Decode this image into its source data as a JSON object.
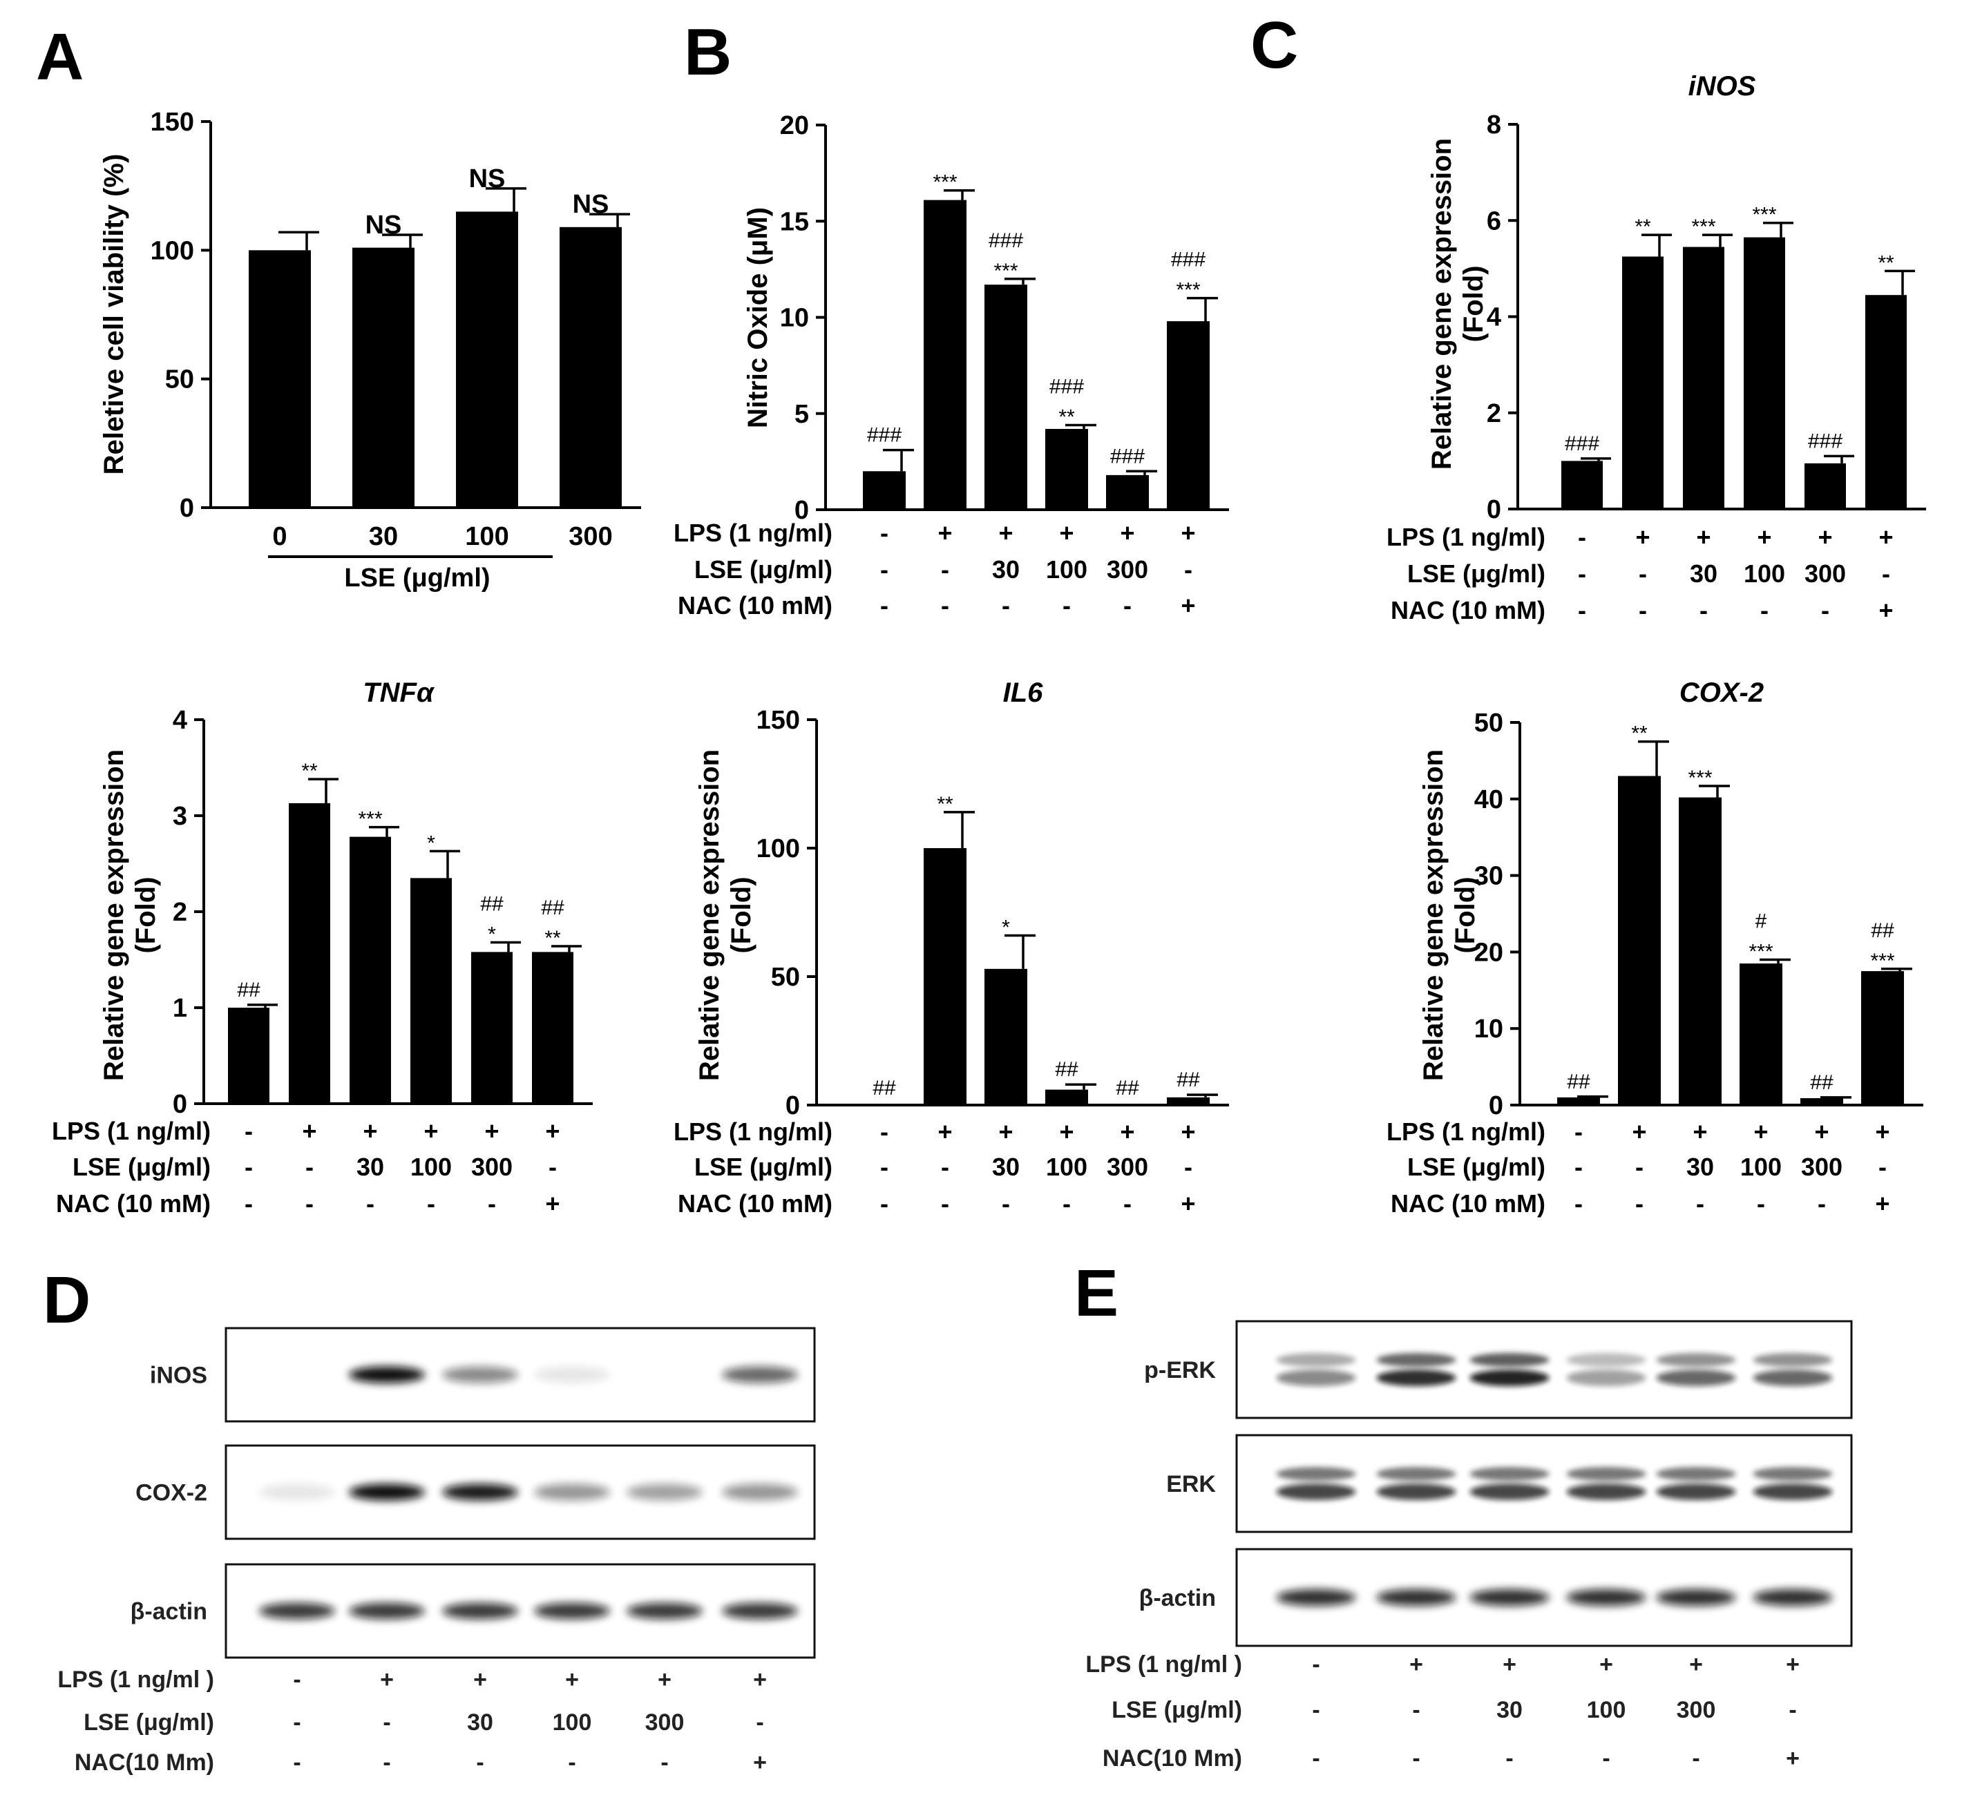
{
  "panels": {
    "A": "A",
    "B": "B",
    "C": "C",
    "D": "D",
    "E": "E"
  },
  "chart_data": [
    {
      "id": "A",
      "type": "bar",
      "title": "",
      "ylabel": "Reletive cell viability (%)",
      "xlabel": "LSE (μg/ml)",
      "ylim": [
        0,
        150
      ],
      "yticks": [
        "0",
        "50",
        "100",
        "150"
      ],
      "categories": [
        "0",
        "30",
        "100",
        "300"
      ],
      "values": [
        100,
        101,
        115,
        109
      ],
      "errors": [
        7,
        5,
        9,
        5
      ],
      "annotations": [
        [
          "",
          ""
        ],
        [
          "",
          "NS"
        ],
        [
          "",
          "NS"
        ],
        [
          "",
          "NS"
        ]
      ]
    },
    {
      "id": "B",
      "type": "bar",
      "title": "",
      "ylabel": "Nitric Oxide (μM)",
      "ylim": [
        0,
        20
      ],
      "yticks": [
        "0",
        "5",
        "10",
        "15",
        "20"
      ],
      "values": [
        2.0,
        16.1,
        11.7,
        4.2,
        1.8,
        9.8
      ],
      "errors": [
        1.1,
        0.5,
        0.3,
        0.2,
        0.2,
        1.2
      ],
      "annotations": [
        [
          "###",
          ""
        ],
        [
          "",
          "***"
        ],
        [
          "###",
          "***"
        ],
        [
          "###",
          "**"
        ],
        [
          "###",
          ""
        ],
        [
          "###",
          "***"
        ]
      ],
      "treatments": [
        {
          "label": "LPS (1 ng/ml)",
          "values": [
            "-",
            "+",
            "+",
            "+",
            "+",
            "+"
          ]
        },
        {
          "label": "LSE (μg/ml)",
          "values": [
            "-",
            "-",
            "30",
            "100",
            "300",
            "-"
          ]
        },
        {
          "label": "NAC (10 mM)",
          "values": [
            "-",
            "-",
            "-",
            "-",
            "-",
            "+"
          ]
        }
      ]
    },
    {
      "id": "C-iNOS",
      "type": "bar",
      "title": "iNOS",
      "ylabel": [
        "Relative gene expression",
        "(Fold)"
      ],
      "ylim": [
        0,
        8
      ],
      "yticks": [
        "0",
        "2",
        "4",
        "6",
        "8"
      ],
      "values": [
        1.0,
        5.25,
        5.45,
        5.65,
        0.95,
        4.45
      ],
      "errors": [
        0.05,
        0.45,
        0.25,
        0.3,
        0.15,
        0.5
      ],
      "annotations": [
        [
          "###",
          ""
        ],
        [
          "",
          "**"
        ],
        [
          "",
          "***"
        ],
        [
          "",
          "***"
        ],
        [
          "###",
          ""
        ],
        [
          "",
          "**"
        ]
      ],
      "treatments": [
        {
          "label": "LPS (1 ng/ml)",
          "values": [
            "-",
            "+",
            "+",
            "+",
            "+",
            "+"
          ]
        },
        {
          "label": "LSE (μg/ml)",
          "values": [
            "-",
            "-",
            "30",
            "100",
            "300",
            "-"
          ]
        },
        {
          "label": "NAC (10 mM)",
          "values": [
            "-",
            "-",
            "-",
            "-",
            "-",
            "+"
          ]
        }
      ]
    },
    {
      "id": "TNFa",
      "type": "bar",
      "title": "TNFα",
      "ylabel": [
        "Relative gene expression",
        "(Fold)"
      ],
      "ylim": [
        0,
        4
      ],
      "yticks": [
        "0",
        "1",
        "2",
        "3",
        "4"
      ],
      "values": [
        1.0,
        3.13,
        2.78,
        2.35,
        1.58,
        1.58
      ],
      "errors": [
        0.03,
        0.25,
        0.1,
        0.28,
        0.1,
        0.06
      ],
      "annotations": [
        [
          "##",
          ""
        ],
        [
          "",
          "**"
        ],
        [
          "",
          "***"
        ],
        [
          "",
          "*"
        ],
        [
          "##",
          "*"
        ],
        [
          "##",
          "**"
        ]
      ],
      "treatments": [
        {
          "label": "LPS (1 ng/ml)",
          "values": [
            "-",
            "+",
            "+",
            "+",
            "+",
            "+"
          ]
        },
        {
          "label": "LSE (μg/ml)",
          "values": [
            "-",
            "-",
            "30",
            "100",
            "300",
            "-"
          ]
        },
        {
          "label": "NAC (10 mM)",
          "values": [
            "-",
            "-",
            "-",
            "-",
            "-",
            "+"
          ]
        }
      ]
    },
    {
      "id": "IL6",
      "type": "bar",
      "title": "IL6",
      "ylabel": [
        "Relative gene expression",
        "(Fold)"
      ],
      "ylim": [
        0,
        150
      ],
      "yticks": [
        "0",
        "50",
        "100",
        "150"
      ],
      "values": [
        0.5,
        100,
        53,
        6,
        0.5,
        3
      ],
      "errors": [
        0.3,
        14,
        13,
        2,
        0.3,
        1
      ],
      "annotations": [
        [
          "##",
          ""
        ],
        [
          "",
          "**"
        ],
        [
          "",
          "*"
        ],
        [
          "##",
          ""
        ],
        [
          "##",
          ""
        ],
        [
          "##",
          ""
        ]
      ],
      "treatments": [
        {
          "label": "LPS (1 ng/ml)",
          "values": [
            "-",
            "+",
            "+",
            "+",
            "+",
            "+"
          ]
        },
        {
          "label": "LSE (μg/ml)",
          "values": [
            "-",
            "-",
            "30",
            "100",
            "300",
            "-"
          ]
        },
        {
          "label": "NAC (10 mM)",
          "values": [
            "-",
            "-",
            "-",
            "-",
            "-",
            "+"
          ]
        }
      ]
    },
    {
      "id": "COX2",
      "type": "bar",
      "title": "COX-2",
      "ylabel": [
        "Relative gene expression",
        "(Fold)"
      ],
      "ylim": [
        0,
        50
      ],
      "yticks": [
        "0",
        "10",
        "20",
        "30",
        "40",
        "50"
      ],
      "values": [
        1.0,
        43,
        40.2,
        18.5,
        0.9,
        17.5
      ],
      "errors": [
        0.1,
        4.5,
        1.5,
        0.5,
        0.1,
        0.3
      ],
      "annotations": [
        [
          "##",
          ""
        ],
        [
          "",
          "**"
        ],
        [
          "",
          "***"
        ],
        [
          "#",
          "***"
        ],
        [
          "##",
          ""
        ],
        [
          "##",
          "***"
        ]
      ],
      "treatments": [
        {
          "label": "LPS (1 ng/ml)",
          "values": [
            "-",
            "+",
            "+",
            "+",
            "+",
            "+"
          ]
        },
        {
          "label": "LSE (μg/ml)",
          "values": [
            "-",
            "-",
            "30",
            "100",
            "300",
            "-"
          ]
        },
        {
          "label": "NAC (10 mM)",
          "values": [
            "-",
            "-",
            "-",
            "-",
            "-",
            "+"
          ]
        }
      ]
    }
  ],
  "blots": {
    "D": {
      "rows": [
        {
          "label": "iNOS",
          "bands": [
            0.0,
            1.0,
            0.45,
            0.05,
            0.0,
            0.6
          ],
          "doublet": false
        },
        {
          "label": "COX-2",
          "bands": [
            0.05,
            1.0,
            0.95,
            0.4,
            0.35,
            0.4
          ],
          "doublet": false
        },
        {
          "label": "β-actin",
          "bands": [
            0.8,
            0.8,
            0.8,
            0.8,
            0.8,
            0.8
          ],
          "doublet": false
        }
      ],
      "treatments": [
        {
          "label": "LPS (1 ng/ml )",
          "values": [
            "-",
            "+",
            "+",
            "+",
            "+",
            "+"
          ]
        },
        {
          "label": "LSE (μg/ml)",
          "values": [
            "-",
            "-",
            "30",
            "100",
            "300",
            "-"
          ]
        },
        {
          "label": "NAC(10 Mm)",
          "values": [
            "-",
            "-",
            "-",
            "-",
            "-",
            "+"
          ]
        }
      ]
    },
    "E": {
      "rows": [
        {
          "label": "p-ERK",
          "bands": [
            0.45,
            0.85,
            0.9,
            0.35,
            0.6,
            0.6
          ],
          "doublet": true
        },
        {
          "label": "ERK",
          "bands": [
            0.75,
            0.75,
            0.75,
            0.75,
            0.75,
            0.75
          ],
          "doublet": true
        },
        {
          "label": "β-actin",
          "bands": [
            0.85,
            0.85,
            0.85,
            0.85,
            0.85,
            0.85
          ],
          "doublet": false
        }
      ],
      "treatments": [
        {
          "label": "LPS (1 ng/ml )",
          "values": [
            "-",
            "+",
            "+",
            "+",
            "+",
            "+"
          ]
        },
        {
          "label": "LSE (μg/ml)",
          "values": [
            "-",
            "-",
            "30",
            "100",
            "300",
            "-"
          ]
        },
        {
          "label": "NAC(10 Mm)",
          "values": [
            "-",
            "-",
            "-",
            "-",
            "-",
            "+"
          ]
        }
      ]
    }
  }
}
